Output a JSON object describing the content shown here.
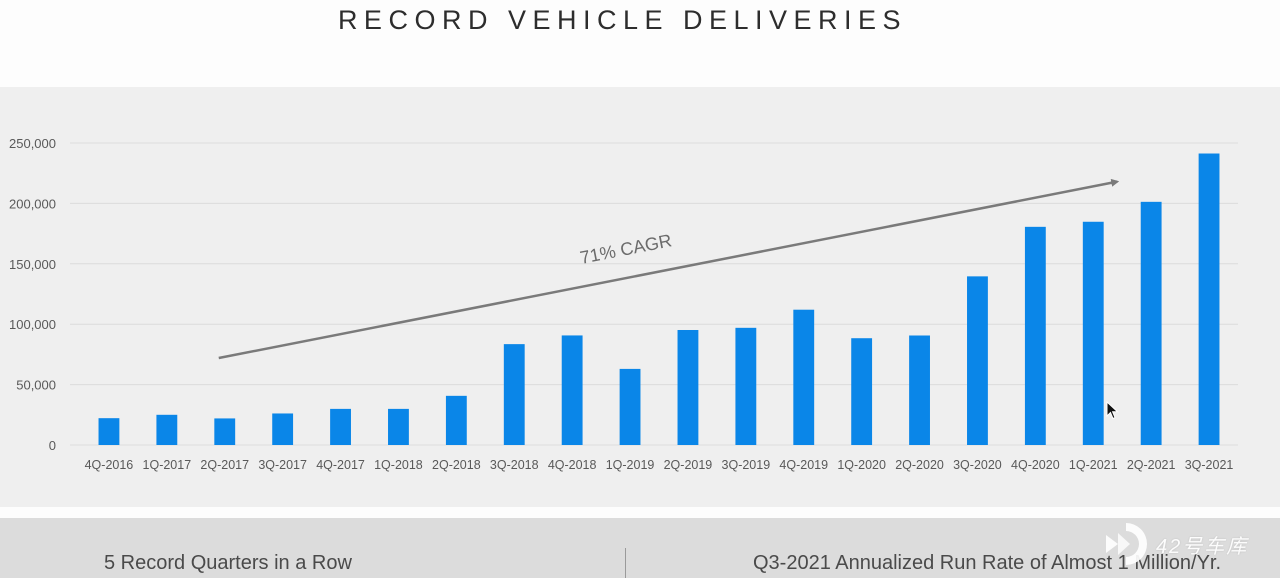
{
  "slide": {
    "title": "RECORD VEHICLE DELIVERIES",
    "footer_left": "5 Record Quarters in a Row",
    "footer_right": "Q3-2021 Annualized Run Rate of Almost 1 Million/Yr.",
    "watermark_text": "42号车库",
    "watermark_icon": "watermark-logo-icon",
    "cursor_icon": "mouse-pointer-icon"
  },
  "colors": {
    "bar": "#0a86e8",
    "arrow": "#7a7a7a",
    "grid": "#dcdcdc",
    "axis_text": "#595959"
  },
  "chart_data": {
    "type": "bar",
    "title": "RECORD VEHICLE DELIVERIES",
    "xlabel": "",
    "ylabel": "",
    "ylim": [
      0,
      250000
    ],
    "yticks": [
      0,
      50000,
      100000,
      150000,
      200000,
      250000
    ],
    "ytick_labels": [
      "0",
      "50,000",
      "100,000",
      "150,000",
      "200,000",
      "250,000"
    ],
    "grid": true,
    "legend": "none",
    "categories": [
      "4Q-2016",
      "1Q-2017",
      "2Q-2017",
      "3Q-2017",
      "4Q-2017",
      "1Q-2018",
      "2Q-2018",
      "3Q-2018",
      "4Q-2018",
      "1Q-2019",
      "2Q-2019",
      "3Q-2019",
      "4Q-2019",
      "1Q-2020",
      "2Q-2020",
      "3Q-2020",
      "4Q-2020",
      "1Q-2021",
      "2Q-2021",
      "3Q-2021"
    ],
    "series": [
      {
        "name": "Vehicle Deliveries",
        "values": [
          22200,
          25000,
          22000,
          26100,
          29900,
          29900,
          40700,
          83500,
          90700,
          63000,
          95200,
          97000,
          112000,
          88400,
          90650,
          139600,
          180600,
          184800,
          201300,
          241300
        ]
      }
    ],
    "annotations": [
      {
        "type": "arrow",
        "label": "71% CAGR",
        "from": {
          "category": "2Q-2017",
          "value": 72000
        },
        "to": {
          "category": "1Q-2021",
          "value": 218000
        }
      }
    ]
  }
}
